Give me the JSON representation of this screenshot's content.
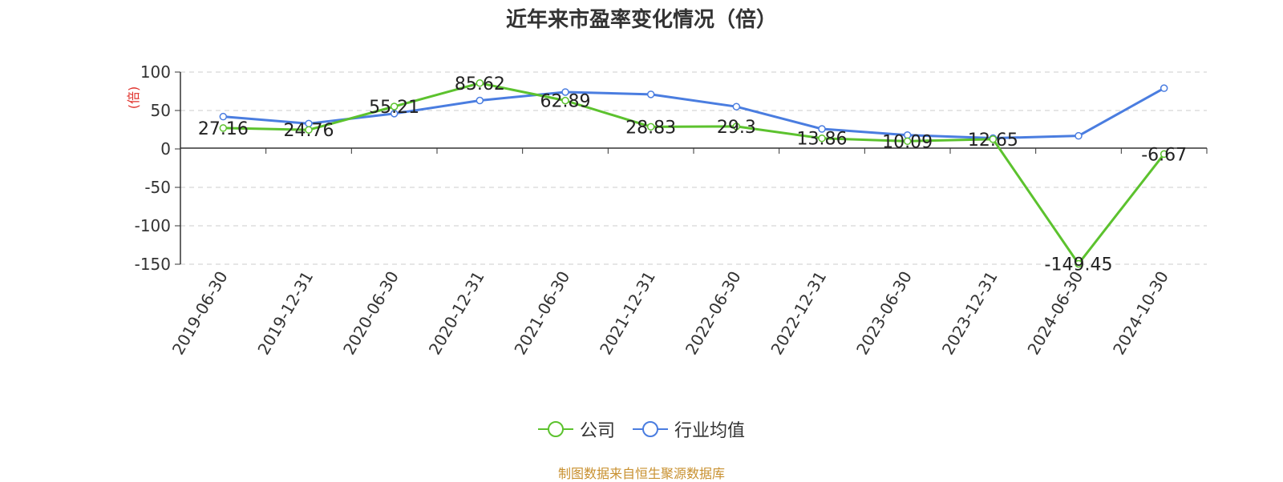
{
  "title": "近年来市盈率变化情况（倍）",
  "source": "制图数据来自恒生聚源数据库",
  "chart_data": {
    "type": "line",
    "title": "近年来市盈率变化情况（倍）",
    "ylabel": "(倍)",
    "xlabel": "",
    "ylim": [
      -150,
      100
    ],
    "yticks": [
      100,
      50,
      0,
      -50,
      -100,
      -150
    ],
    "grid": true,
    "legend_position": "bottom-center",
    "categories": [
      "2019-06-30",
      "2019-12-31",
      "2020-06-30",
      "2020-12-31",
      "2021-06-30",
      "2021-12-31",
      "2022-06-30",
      "2022-12-31",
      "2023-06-30",
      "2023-12-31",
      "2024-06-30",
      "2024-10-30"
    ],
    "series": [
      {
        "name": "公司",
        "color": "#5cc22e",
        "values": [
          27.16,
          24.76,
          55.21,
          85.62,
          62.89,
          28.83,
          29.3,
          13.86,
          10.09,
          12.65,
          -149.45,
          -6.67
        ],
        "labels": [
          "27.16",
          "24.76",
          "55.21",
          "85.62",
          "62.89",
          "28.83",
          "29.3",
          "13.86",
          "10.09",
          "12.65",
          "-149.45",
          "-6.67"
        ]
      },
      {
        "name": "行业均值",
        "color": "#4a7de0",
        "values": [
          42,
          33,
          46,
          63,
          74,
          71,
          55,
          26,
          18,
          14,
          17,
          79
        ]
      }
    ]
  }
}
